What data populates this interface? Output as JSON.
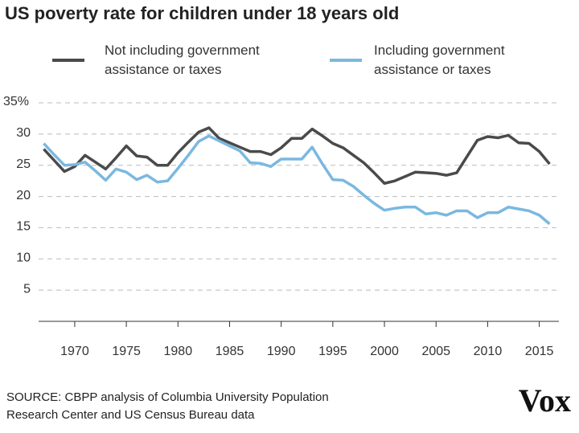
{
  "chart_data": {
    "type": "line",
    "title": "US poverty rate for children under 18 years old",
    "x": [
      1967,
      1968,
      1969,
      1970,
      1971,
      1972,
      1973,
      1974,
      1975,
      1976,
      1977,
      1978,
      1979,
      1980,
      1981,
      1982,
      1983,
      1984,
      1985,
      1986,
      1987,
      1988,
      1989,
      1990,
      1991,
      1992,
      1993,
      1994,
      1995,
      1996,
      1997,
      1998,
      1999,
      2000,
      2001,
      2002,
      2003,
      2004,
      2005,
      2006,
      2007,
      2008,
      2009,
      2010,
      2011,
      2012,
      2013,
      2014,
      2015,
      2016
    ],
    "series": [
      {
        "name": "Not including government assistance or taxes",
        "color": "#4a4a4a",
        "values": [
          27.6,
          25.8,
          24.0,
          24.8,
          26.6,
          25.5,
          24.4,
          26.2,
          28.1,
          26.5,
          26.3,
          25.0,
          25.0,
          27.0,
          28.7,
          30.3,
          31.0,
          29.3,
          28.6,
          27.9,
          27.2,
          27.2,
          26.7,
          27.8,
          29.3,
          29.3,
          30.8,
          29.7,
          28.5,
          27.8,
          26.6,
          25.4,
          23.8,
          22.1,
          22.5,
          23.2,
          23.9,
          23.8,
          23.7,
          23.4,
          23.8,
          26.4,
          29.0,
          29.6,
          29.4,
          29.8,
          28.6,
          28.5,
          27.2,
          25.2
        ]
      },
      {
        "name": "Including government assistance or taxes",
        "color": "#7ab8e0",
        "values": [
          28.5,
          26.7,
          25.0,
          25.1,
          25.5,
          24.1,
          22.6,
          24.4,
          23.9,
          22.7,
          23.4,
          22.3,
          22.5,
          24.5,
          26.6,
          28.8,
          29.7,
          28.9,
          28.1,
          27.3,
          25.4,
          25.3,
          24.8,
          26.0,
          26.0,
          26.0,
          27.9,
          25.2,
          22.7,
          22.6,
          21.6,
          20.2,
          18.9,
          17.8,
          18.1,
          18.3,
          18.3,
          17.2,
          17.4,
          17.0,
          17.7,
          17.7,
          16.6,
          17.4,
          17.4,
          18.3,
          18.0,
          17.7,
          17.0,
          15.6
        ]
      }
    ],
    "xlim": [
      1966.5,
      2016.9
    ],
    "xticks": [
      1970,
      1975,
      1980,
      1985,
      1990,
      1995,
      2000,
      2005,
      2010,
      2015
    ],
    "ylim": [
      0,
      35
    ],
    "yticks": [
      5,
      10,
      15,
      20,
      25,
      30,
      {
        "value": 35,
        "label": "35%"
      }
    ],
    "grid": true,
    "source": [
      "SOURCE: CBPP analysis of Columbia University Population",
      "Research Center and US Census Bureau data"
    ],
    "logo": "Vox"
  }
}
